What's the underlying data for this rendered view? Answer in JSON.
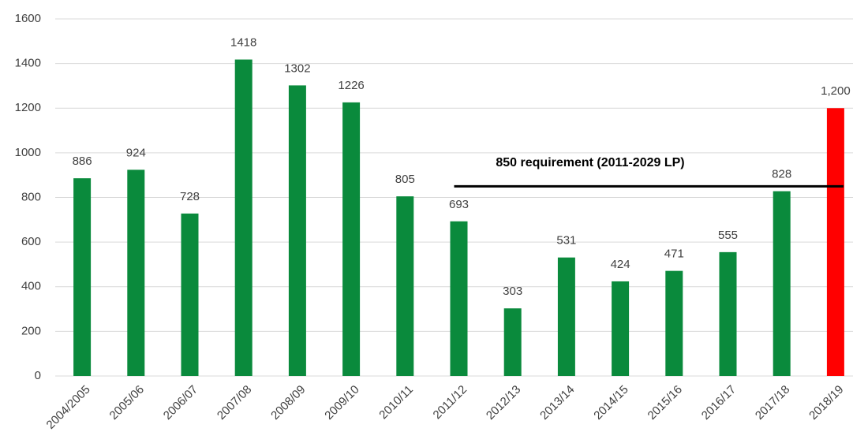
{
  "chart_data": {
    "type": "bar",
    "categories": [
      "2004/2005",
      "2005/06",
      "2006/07",
      "2007/08",
      "2008/09",
      "2009/10",
      "2010/11",
      "2011/12",
      "2012/13",
      "2013/14",
      "2014/15",
      "2015/16",
      "2016/17",
      "2017/18",
      "2018/19"
    ],
    "values": [
      886,
      924,
      728,
      1418,
      1302,
      1226,
      805,
      693,
      303,
      531,
      424,
      471,
      555,
      828,
      1200
    ],
    "value_labels": [
      "886",
      "924",
      "728",
      "1418",
      "1302",
      "1226",
      "805",
      "693",
      "303",
      "531",
      "424",
      "471",
      "555",
      "828",
      "1,200"
    ],
    "colors": [
      "#0a8a3c",
      "#0a8a3c",
      "#0a8a3c",
      "#0a8a3c",
      "#0a8a3c",
      "#0a8a3c",
      "#0a8a3c",
      "#0a8a3c",
      "#0a8a3c",
      "#0a8a3c",
      "#0a8a3c",
      "#0a8a3c",
      "#0a8a3c",
      "#0a8a3c",
      "#ff0000"
    ],
    "ylim": [
      0,
      1600
    ],
    "yticks": [
      0,
      200,
      400,
      600,
      800,
      1000,
      1200,
      1400,
      1600
    ],
    "grid": true,
    "reference_line": {
      "value": 850,
      "label": "850 requirement (2011-2029 LP)",
      "from": "2011/12",
      "to": "2018/19",
      "color": "#000000"
    }
  }
}
